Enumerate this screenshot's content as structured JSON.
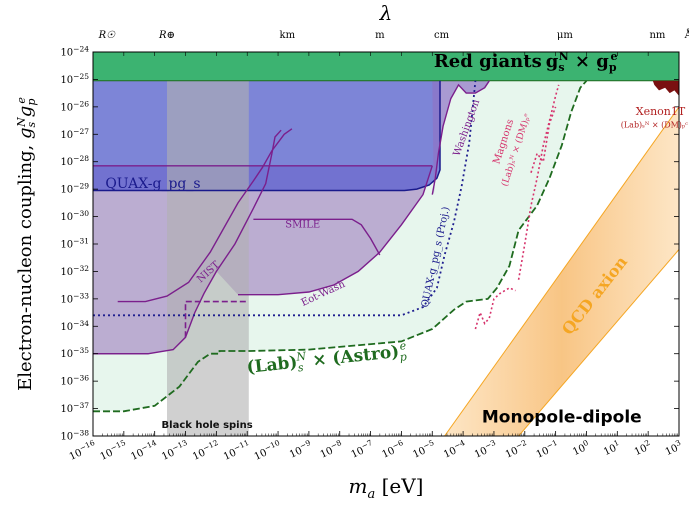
{
  "chart_data": {
    "type": "area",
    "title": "",
    "xlabel": "m_a [eV]",
    "ylabel": "Electron-nucleon coupling, g_s^N g_p^e",
    "top_axis_label": "λ",
    "xlim_log10": [
      -16,
      3
    ],
    "ylim_log10": [
      -38,
      -24
    ],
    "x_ticks": [
      {
        "exp": -16,
        "label": "10^-16"
      },
      {
        "exp": -15,
        "label": "10^-15"
      },
      {
        "exp": -14,
        "label": "10^-14"
      },
      {
        "exp": -13,
        "label": "10^-13"
      },
      {
        "exp": -12,
        "label": "10^-12"
      },
      {
        "exp": -11,
        "label": "10^-11"
      },
      {
        "exp": -10,
        "label": "10^-10"
      },
      {
        "exp": -9,
        "label": "10^-9"
      },
      {
        "exp": -8,
        "label": "10^-8"
      },
      {
        "exp": -7,
        "label": "10^-7"
      },
      {
        "exp": -6,
        "label": "10^-6"
      },
      {
        "exp": -5,
        "label": "10^-5"
      },
      {
        "exp": -4,
        "label": "10^-4"
      },
      {
        "exp": -3,
        "label": "10^-3"
      },
      {
        "exp": -2,
        "label": "10^-2"
      },
      {
        "exp": -1,
        "label": "10^-1"
      },
      {
        "exp": 0,
        "label": "10^0"
      },
      {
        "exp": 1,
        "label": "10^1"
      },
      {
        "exp": 2,
        "label": "10^2"
      },
      {
        "exp": 3,
        "label": "10^3"
      }
    ],
    "y_ticks": [
      -38,
      -37,
      -36,
      -35,
      -34,
      -33,
      -32,
      -31,
      -30,
      -29,
      -28,
      -27,
      -26,
      -25,
      -24
    ],
    "top_ticks": [
      {
        "label": "R☉",
        "x_log": -15.55
      },
      {
        "label": "R⊕",
        "x_log": -13.6
      },
      {
        "label": "km",
        "x_log": -9.7
      },
      {
        "label": "m",
        "x_log": -6.7
      },
      {
        "label": "cm",
        "x_log": -4.7
      },
      {
        "label": "μm",
        "x_log": -0.7
      },
      {
        "label": "nm",
        "x_log": 2.3
      },
      {
        "label": "Å",
        "x_log": 3.3
      }
    ],
    "regions": [
      {
        "name": "Red giants",
        "label_text": "Red giants",
        "label_suffix": "g_s^N × g_p^e",
        "color": "#3cb371",
        "points": [
          [
            -16,
            -24
          ],
          [
            3,
            -24
          ],
          [
            3,
            -25.05
          ],
          [
            -16,
            -25.05
          ]
        ]
      },
      {
        "name": "Black hole spins",
        "label_text": "Black hole spins",
        "color": "#b0b0b0",
        "points": [
          [
            -13.6,
            -38
          ],
          [
            -10.95,
            -38
          ],
          [
            -10.95,
            -25.05
          ],
          [
            -13.6,
            -25.05
          ]
        ]
      },
      {
        "name": "QUAX-gpgs",
        "label_text": "QUAX-g_pg_s",
        "color": "#5a5fcf",
        "points": [
          [
            -16,
            -25.05
          ],
          [
            -4.75,
            -25.05
          ],
          [
            -4.75,
            -28.3
          ],
          [
            -4.85,
            -28.6
          ],
          [
            -5.1,
            -28.85
          ],
          [
            -5.5,
            -29
          ],
          [
            -5.9,
            -29.05
          ],
          [
            -16,
            -29.05
          ]
        ]
      },
      {
        "name": "Washington",
        "label_text": "Washington",
        "color": "#9b6ba8",
        "points": [
          [
            -5.1,
            -25.05
          ],
          [
            -3.15,
            -25.05
          ],
          [
            -3.3,
            -25.3
          ],
          [
            -3.6,
            -25.5
          ],
          [
            -3.9,
            -25.5
          ],
          [
            -4.15,
            -25.2
          ],
          [
            -4.4,
            -25.7
          ],
          [
            -4.65,
            -26.7
          ],
          [
            -4.8,
            -27.7
          ],
          [
            -4.9,
            -28.6
          ],
          [
            -4.95,
            -29.2
          ],
          [
            -5.0,
            -25.05
          ]
        ]
      },
      {
        "name": "NIST",
        "label_text": "NIST",
        "color": "#8e6aae",
        "points": [
          [
            -16,
            -28.15
          ],
          [
            -11.3,
            -28.15
          ],
          [
            -11.3,
            -34.9
          ],
          [
            -16,
            -34.9
          ]
        ]
      },
      {
        "name": "SMILE",
        "label_text": "SMILE",
        "color": "#9b6ba8",
        "points": [
          [
            -10.8,
            -30.1
          ],
          [
            -7.5,
            -30.1
          ],
          [
            -7.2,
            -30.4
          ],
          [
            -7.0,
            -30.7
          ]
        ]
      },
      {
        "name": "Eot-Wash",
        "label_text": "Eot-Wash",
        "color": "#9b6ba8",
        "points": [
          [
            -11.3,
            -28.15
          ],
          [
            -5.0,
            -28.15
          ],
          [
            -5.3,
            -29.2
          ],
          [
            -6.0,
            -30.3
          ],
          [
            -6.7,
            -31.3
          ],
          [
            -7.4,
            -32.0
          ],
          [
            -8.2,
            -32.5
          ],
          [
            -9.0,
            -32.75
          ],
          [
            -10.0,
            -32.85
          ],
          [
            -11.3,
            -32.85
          ]
        ]
      },
      {
        "name": "(Lab)_s^N × (Astro)_p^e",
        "label_text": "(Lab)",
        "label_suffix": "× (Astro)",
        "color": "#e3f4ea",
        "points": [
          [
            -16,
            -37.1
          ],
          [
            -15.0,
            -37.1
          ],
          [
            -14.0,
            -36.9
          ],
          [
            -13.2,
            -36.2
          ],
          [
            -12.6,
            -35.3
          ],
          [
            -12.2,
            -35.0
          ],
          [
            -11.9,
            -35.0
          ],
          [
            -11.9,
            -34.9
          ],
          [
            -10.9,
            -34.9
          ],
          [
            -9.0,
            -34.85
          ],
          [
            -6.0,
            -34.55
          ],
          [
            -5.0,
            -34.1
          ],
          [
            -4.3,
            -33.4
          ],
          [
            -3.9,
            -33.1
          ],
          [
            -3.2,
            -33.0
          ],
          [
            -2.9,
            -32.6
          ],
          [
            -2.5,
            -31.8
          ],
          [
            -2.2,
            -30.5
          ],
          [
            -1.6,
            -29.6
          ],
          [
            -1.2,
            -28.6
          ],
          [
            -0.8,
            -27.4
          ],
          [
            -0.5,
            -26.2
          ],
          [
            -0.2,
            -25.3
          ],
          [
            0,
            -25.05
          ],
          [
            -16,
            -25.05
          ]
        ]
      },
      {
        "name": "Magnons",
        "label_text": "Magnons",
        "label_suffix": "(Lab)_s^N × (DM)_p^e",
        "color": "#d6336c"
      },
      {
        "name": "Xenon1T",
        "label_text": "Xenon1T",
        "label_suffix": "(Lab)_s^N × (DM)_p^c",
        "color": "#b22222"
      },
      {
        "name": "QCD axion",
        "label_text": "QCD axion",
        "color": "#f7a943"
      }
    ],
    "lines": [
      {
        "name": "NIST boundary",
        "color": "#7b1f8c",
        "style": "solid",
        "points": [
          [
            -16,
            -35.0
          ],
          [
            -14.2,
            -35.0
          ],
          [
            -13.4,
            -34.85
          ],
          [
            -13.0,
            -34.4
          ],
          [
            -12.7,
            -33.5
          ],
          [
            -12.4,
            -32.8
          ],
          [
            -12.0,
            -32.0
          ],
          [
            -11.4,
            -31.0
          ],
          [
            -10.8,
            -29.7
          ],
          [
            -10.4,
            -28.8
          ],
          [
            -10.2,
            -27.7
          ],
          [
            -10.1,
            -27.1
          ],
          [
            -9.9,
            -26.85
          ]
        ]
      },
      {
        "name": "NIST upper",
        "color": "#7b1f8c",
        "style": "solid",
        "points": [
          [
            -15.2,
            -33.1
          ],
          [
            -14.3,
            -33.1
          ],
          [
            -13.6,
            -32.9
          ],
          [
            -12.9,
            -32.4
          ],
          [
            -12.2,
            -31.3
          ],
          [
            -11.3,
            -29.5
          ],
          [
            -10.8,
            -28.7
          ],
          [
            -10.5,
            -28.2
          ],
          [
            -10.2,
            -27.6
          ],
          [
            -9.8,
            -27.0
          ],
          [
            -9.55,
            -26.8
          ]
        ]
      },
      {
        "name": "QUAX-gpgs (Proj.)",
        "color": "#1e1e8f",
        "style": "dotted",
        "points": [
          [
            -16,
            -33.6
          ],
          [
            -6.0,
            -33.6
          ],
          [
            -5.3,
            -33.3
          ],
          [
            -4.85,
            -32.6
          ],
          [
            -4.6,
            -31.4
          ],
          [
            -4.3,
            -30.2
          ],
          [
            -4.05,
            -28.9
          ],
          [
            -3.8,
            -27.3
          ],
          [
            -3.6,
            -25.05
          ]
        ]
      },
      {
        "name": "Magnons dotted",
        "color": "#d6336c",
        "style": "dotted",
        "points": [
          [
            -2.2,
            -32.3
          ],
          [
            -2.0,
            -31.0
          ],
          [
            -1.8,
            -29.6
          ],
          [
            -1.6,
            -28.6
          ],
          [
            -1.4,
            -27.4
          ],
          [
            -1.2,
            -26.5
          ],
          [
            -1.0,
            -25.6
          ],
          [
            -0.9,
            -25.2
          ]
        ]
      },
      {
        "name": "(Lab) × (Astro) boundary",
        "color": "#1f6b1f",
        "style": "dashed",
        "points": [
          [
            -16,
            -37.1
          ],
          [
            -15.0,
            -37.1
          ],
          [
            -14.0,
            -36.9
          ],
          [
            -13.2,
            -36.2
          ],
          [
            -12.6,
            -35.3
          ],
          [
            -12.2,
            -35.0
          ],
          [
            -11.9,
            -35.0
          ],
          [
            -11.9,
            -34.9
          ],
          [
            -10.9,
            -34.9
          ],
          [
            -9.0,
            -34.85
          ],
          [
            -6.0,
            -34.55
          ],
          [
            -5.0,
            -34.1
          ],
          [
            -4.3,
            -33.4
          ],
          [
            -3.9,
            -33.1
          ],
          [
            -3.2,
            -33.0
          ],
          [
            -2.9,
            -32.6
          ],
          [
            -2.5,
            -31.8
          ],
          [
            -2.2,
            -30.5
          ],
          [
            -1.6,
            -29.6
          ],
          [
            -1.2,
            -28.6
          ],
          [
            -0.8,
            -27.4
          ],
          [
            -0.5,
            -26.2
          ],
          [
            -0.2,
            -25.3
          ],
          [
            0,
            -25.05
          ]
        ]
      },
      {
        "name": "BH dashed step",
        "color": "#7b1f8c",
        "style": "dashed",
        "points": [
          [
            -13.0,
            -33.1
          ],
          [
            -11.0,
            -33.1
          ]
        ]
      }
    ],
    "text_labels": [
      {
        "text": "Red giants",
        "x_log": -3.2,
        "y_log": -24.55
      },
      {
        "text": "Monopole-dipole",
        "x_log": -0.8,
        "y_log": -37.5
      },
      {
        "text": "Black hole spins",
        "x_log": -12.3,
        "y_log": -37.7
      },
      {
        "text": "QUAX-g_pg_s",
        "x_log": -15.6,
        "y_log": -28.95
      },
      {
        "text": "SMILE",
        "x_log": -9.2,
        "y_log": -30.4
      },
      {
        "text": "NIST",
        "x_log": -12.2,
        "y_log": -32.1
      },
      {
        "text": "Eot-Wash",
        "x_log": -8.5,
        "y_log": -32.9
      },
      {
        "text": "Washington",
        "x_log": -3.8,
        "y_log": -26.8
      },
      {
        "text": "QUAX-g_pg_s (Proj.)",
        "x_log": -4.8,
        "y_log": -31.5
      },
      {
        "text": "Magnons",
        "x_log": -2.6,
        "y_log": -27.3
      },
      {
        "text": "Xenon1T",
        "x_log": 2.4,
        "y_log": -26.3
      },
      {
        "text": "QCD axion",
        "x_log": 0.4,
        "y_log": -33.0
      }
    ]
  }
}
